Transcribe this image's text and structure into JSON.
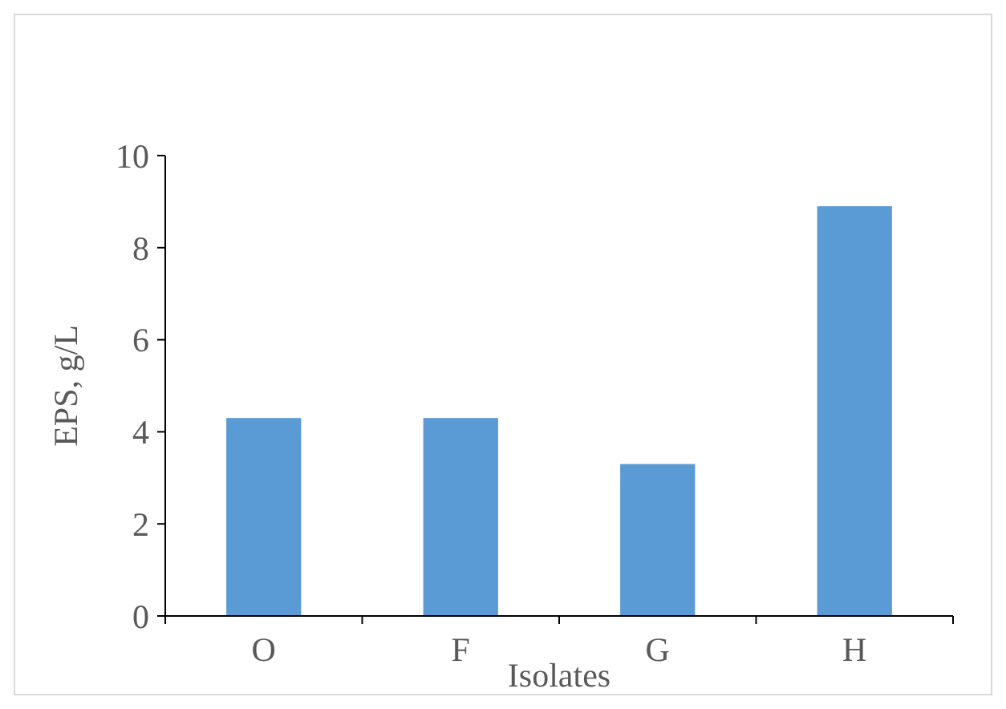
{
  "chart_data": {
    "type": "bar",
    "categories": [
      "O",
      "F",
      "G",
      "H"
    ],
    "values": [
      4.3,
      4.3,
      3.3,
      8.9
    ],
    "color": "#5b9bd5",
    "xlabel": "Isolates",
    "ylabel": "EPS, g/L",
    "ylim": [
      0,
      10
    ],
    "yticks": [
      0,
      2,
      4,
      6,
      8,
      10
    ],
    "grid": false
  }
}
